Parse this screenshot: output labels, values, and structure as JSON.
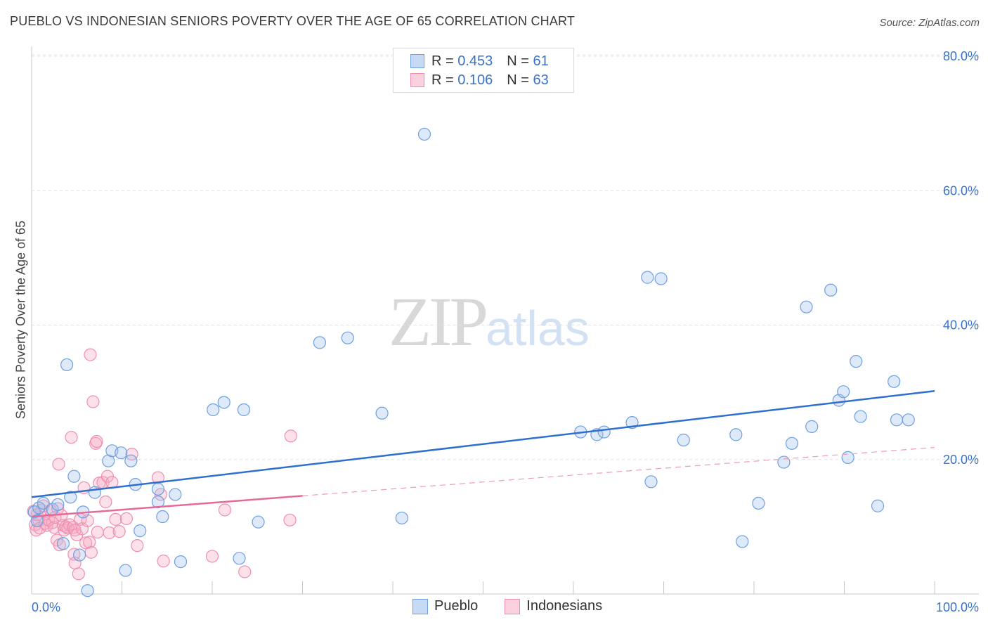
{
  "title": "PUEBLO VS INDONESIAN SENIORS POVERTY OVER THE AGE OF 65 CORRELATION CHART",
  "source": "Source: ZipAtlas.com",
  "watermark": {
    "zip": "ZIP",
    "atlas": "atlas"
  },
  "legend": {
    "rows": [
      {
        "r_label": "R = ",
        "r_value": "0.453",
        "n_label": "N = ",
        "n_value": "61",
        "color": "#6f9fe0"
      },
      {
        "r_label": "R = ",
        "r_value": "0.106",
        "n_label": "N = ",
        "n_value": "63",
        "color": "#ef8faf"
      }
    ]
  },
  "bottom_legend": {
    "series1": "Pueblo",
    "series2": "Indonesians"
  },
  "chart_data": {
    "type": "scatter",
    "title": "PUEBLO VS INDONESIAN SENIORS POVERTY OVER THE AGE OF 65 CORRELATION CHART",
    "xlabel": "",
    "ylabel": "Seniors Poverty Over the Age of 65",
    "xlim": [
      0,
      100
    ],
    "ylim": [
      0,
      80
    ],
    "x_tick_labels": [
      "0.0%",
      "100.0%"
    ],
    "y_ticks": [
      20,
      40,
      60,
      80
    ],
    "y_tick_labels": [
      "20.0%",
      "40.0%",
      "60.0%",
      "80.0%"
    ],
    "grid": true,
    "legend_position": "top-center",
    "series": [
      {
        "name": "Pueblo",
        "color": "#6f9fe0",
        "line_color": "#2f6fd0",
        "trend": {
          "x": [
            0,
            100
          ],
          "y": [
            14.4,
            30.2
          ]
        },
        "points": [
          [
            0.3,
            12.2
          ],
          [
            0.6,
            10.9
          ],
          [
            0.8,
            12.8
          ],
          [
            1.3,
            13.5
          ],
          [
            2.3,
            12.6
          ],
          [
            2.9,
            13.3
          ],
          [
            3.5,
            7.5
          ],
          [
            3.9,
            34.1
          ],
          [
            4.3,
            14.4
          ],
          [
            4.7,
            17.5
          ],
          [
            5.3,
            5.8
          ],
          [
            5.7,
            12.2
          ],
          [
            6.2,
            0.5
          ],
          [
            7.0,
            15.1
          ],
          [
            8.5,
            19.8
          ],
          [
            8.9,
            21.3
          ],
          [
            9.9,
            21.0
          ],
          [
            10.4,
            3.5
          ],
          [
            11.0,
            19.8
          ],
          [
            11.5,
            16.3
          ],
          [
            12.0,
            9.4
          ],
          [
            14.0,
            15.6
          ],
          [
            14.0,
            13.7
          ],
          [
            14.5,
            11.5
          ],
          [
            15.9,
            14.8
          ],
          [
            16.5,
            4.8
          ],
          [
            20.1,
            27.4
          ],
          [
            21.3,
            28.5
          ],
          [
            23.0,
            5.3
          ],
          [
            23.5,
            27.4
          ],
          [
            25.1,
            10.7
          ],
          [
            31.9,
            37.4
          ],
          [
            35.0,
            38.1
          ],
          [
            38.8,
            26.9
          ],
          [
            41.0,
            11.3
          ],
          [
            43.5,
            68.4
          ],
          [
            60.8,
            24.1
          ],
          [
            62.6,
            23.7
          ],
          [
            63.4,
            24.1
          ],
          [
            66.5,
            25.5
          ],
          [
            68.2,
            47.1
          ],
          [
            68.6,
            16.7
          ],
          [
            69.7,
            46.9
          ],
          [
            72.2,
            22.9
          ],
          [
            78.0,
            23.7
          ],
          [
            78.7,
            7.8
          ],
          [
            80.5,
            13.5
          ],
          [
            83.3,
            19.6
          ],
          [
            84.2,
            22.4
          ],
          [
            85.8,
            42.7
          ],
          [
            86.4,
            24.9
          ],
          [
            88.5,
            45.2
          ],
          [
            89.4,
            28.8
          ],
          [
            89.9,
            30.1
          ],
          [
            90.4,
            20.3
          ],
          [
            91.3,
            34.6
          ],
          [
            91.8,
            26.4
          ],
          [
            93.7,
            13.1
          ],
          [
            95.5,
            31.6
          ],
          [
            95.8,
            25.9
          ],
          [
            97.1,
            25.9
          ]
        ]
      },
      {
        "name": "Indonesians",
        "color": "#ef8faf",
        "line_color": "#e8689a",
        "trend": {
          "x": [
            0,
            30
          ],
          "y": [
            11.5,
            14.6
          ],
          "dash_x": [
            30,
            100
          ],
          "dash_y": [
            14.6,
            21.8
          ]
        },
        "points": [
          [
            0.2,
            12.3
          ],
          [
            0.4,
            10.3
          ],
          [
            0.5,
            9.5
          ],
          [
            0.6,
            11.8
          ],
          [
            0.8,
            10.9
          ],
          [
            0.9,
            9.8
          ],
          [
            1.1,
            12.5
          ],
          [
            1.3,
            13.1
          ],
          [
            1.5,
            10.5
          ],
          [
            1.7,
            10.2
          ],
          [
            1.9,
            11.0
          ],
          [
            2.1,
            12.4
          ],
          [
            2.3,
            10.6
          ],
          [
            2.5,
            9.9
          ],
          [
            2.6,
            11.4
          ],
          [
            2.8,
            8.0
          ],
          [
            2.9,
            12.7
          ],
          [
            3.1,
            7.3
          ],
          [
            3.0,
            19.3
          ],
          [
            3.3,
            11.7
          ],
          [
            3.5,
            10.2
          ],
          [
            3.6,
            9.5
          ],
          [
            3.8,
            10.0
          ],
          [
            4.0,
            9.8
          ],
          [
            4.2,
            10.3
          ],
          [
            4.4,
            23.3
          ],
          [
            4.6,
            9.9
          ],
          [
            4.8,
            9.5
          ],
          [
            5.0,
            8.8
          ],
          [
            4.7,
            5.9
          ],
          [
            4.8,
            4.6
          ],
          [
            5.2,
            3.0
          ],
          [
            5.4,
            11.1
          ],
          [
            5.6,
            9.7
          ],
          [
            5.8,
            15.8
          ],
          [
            6.0,
            7.6
          ],
          [
            6.2,
            10.9
          ],
          [
            6.4,
            7.7
          ],
          [
            6.5,
            35.6
          ],
          [
            6.6,
            6.2
          ],
          [
            6.8,
            28.6
          ],
          [
            7.1,
            22.4
          ],
          [
            7.2,
            22.7
          ],
          [
            7.3,
            9.2
          ],
          [
            7.5,
            16.5
          ],
          [
            7.9,
            16.6
          ],
          [
            8.2,
            13.7
          ],
          [
            8.4,
            17.5
          ],
          [
            8.6,
            9.1
          ],
          [
            8.9,
            16.6
          ],
          [
            9.3,
            11.1
          ],
          [
            9.7,
            9.3
          ],
          [
            10.5,
            11.2
          ],
          [
            11.1,
            20.8
          ],
          [
            11.7,
            7.2
          ],
          [
            14.0,
            17.3
          ],
          [
            14.3,
            14.8
          ],
          [
            14.6,
            4.9
          ],
          [
            20.0,
            5.6
          ],
          [
            21.4,
            12.5
          ],
          [
            23.6,
            3.3
          ],
          [
            28.6,
            11.0
          ],
          [
            28.7,
            23.5
          ]
        ]
      }
    ]
  }
}
